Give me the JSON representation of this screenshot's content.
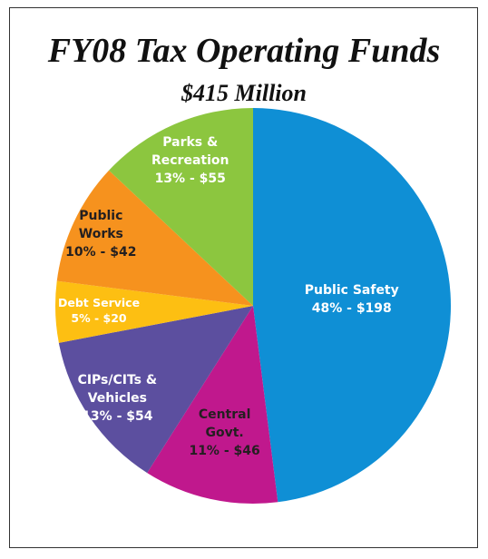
{
  "chart_data": {
    "type": "pie",
    "title": "FY08 Tax Operating Funds",
    "subtitle": "$415 Million",
    "categories": [
      "Public Safety",
      "Central Govt.",
      "CIPs/CITs & Vehicles",
      "Debt Service",
      "Public Works",
      "Parks & Recreation"
    ],
    "values": [
      48,
      11,
      13,
      5,
      10,
      13
    ],
    "value_labels": [
      "48% - $198",
      "11% - $46",
      "13% - $54",
      "5% - $20",
      "10% - $42",
      "13% - $55"
    ],
    "colors": [
      "#0f8fd5",
      "#c0188d",
      "#5c4f9f",
      "#fdbf12",
      "#f6921e",
      "#8cc63f"
    ],
    "label_colors": [
      "#ffffff",
      "#231f20",
      "#ffffff",
      "#ffffff",
      "#231f20",
      "#ffffff"
    ]
  }
}
